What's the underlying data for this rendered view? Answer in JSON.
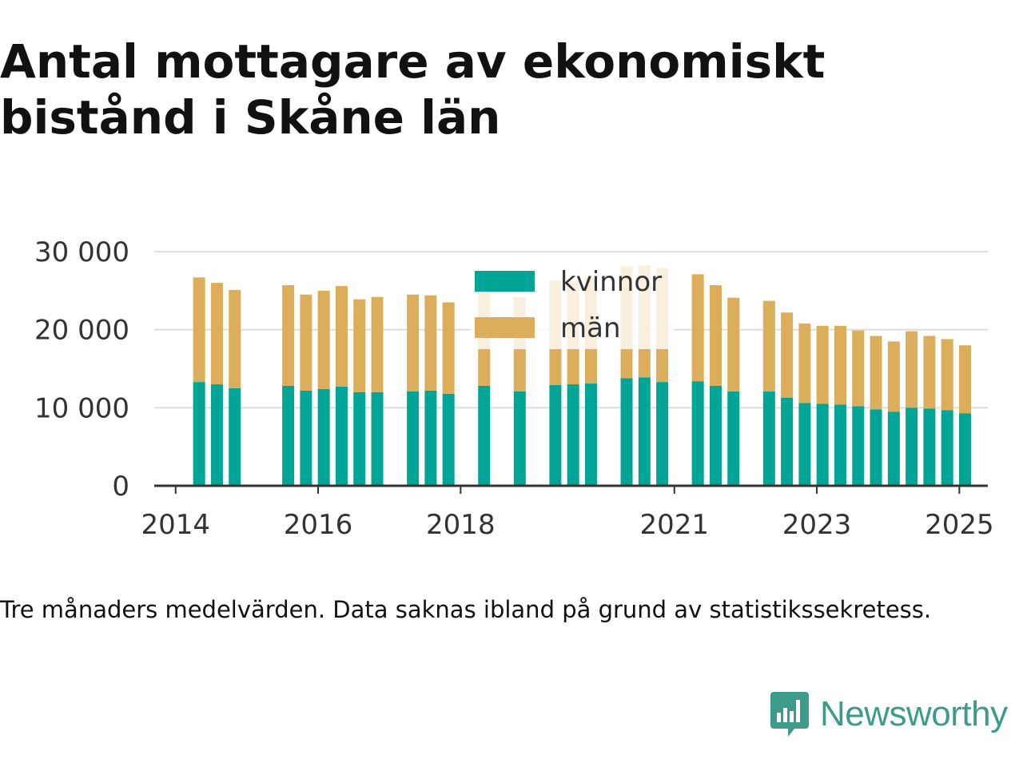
{
  "header": {
    "title": "Antal mottagare av ekonomiskt bistånd i Skåne län"
  },
  "footer": {
    "note": "Tre månaders medelvärden. Data saknas ibland på grund av statistikssekretess.",
    "brand": "Newsworthy"
  },
  "colors": {
    "kvinnor": "#00a595",
    "man": "#dcae5c",
    "brand": "#3d9b89",
    "grid": "#dddddd",
    "axis": "#333333"
  },
  "chart_data": {
    "type": "bar",
    "stacked": true,
    "title": "Antal mottagare av ekonomiskt bistånd i Skåne län",
    "xlabel": "",
    "ylabel": "",
    "ylim": [
      0,
      30000
    ],
    "yticks": [
      0,
      10000,
      20000,
      30000
    ],
    "ytick_labels": [
      "0",
      "10 000",
      "20 000",
      "30 000"
    ],
    "xlim": [
      2013.7,
      2025.4
    ],
    "xticks": [
      2014,
      2016,
      2018,
      2021,
      2023,
      2025
    ],
    "xtick_labels": [
      "2014",
      "2016",
      "2018",
      "2021",
      "2023",
      "2025"
    ],
    "grid": true,
    "legend_position": "top-center",
    "x": [
      2014.33,
      2014.58,
      2014.83,
      2015.58,
      2015.83,
      2016.08,
      2016.33,
      2016.58,
      2016.83,
      2017.33,
      2017.58,
      2017.83,
      2018.33,
      2018.83,
      2019.33,
      2019.58,
      2019.83,
      2020.33,
      2020.58,
      2020.83,
      2021.33,
      2021.58,
      2021.83,
      2022.33,
      2022.58,
      2022.83,
      2023.08,
      2023.33,
      2023.58,
      2023.83,
      2024.08,
      2024.33,
      2024.58,
      2024.83,
      2025.08
    ],
    "series": [
      {
        "name": "kvinnor",
        "values": [
          13300,
          13000,
          12500,
          12800,
          12200,
          12400,
          12700,
          12000,
          12000,
          12100,
          12200,
          11800,
          12800,
          12100,
          12900,
          13000,
          13100,
          13800,
          13900,
          13300,
          13400,
          12800,
          12100,
          12100,
          11300,
          10600,
          10500,
          10400,
          10200,
          9800,
          9500,
          10000,
          9900,
          9700,
          9300
        ]
      },
      {
        "name": "män",
        "values": [
          13400,
          13000,
          12600,
          12900,
          12300,
          12600,
          12900,
          11900,
          12200,
          12400,
          12200,
          11700,
          13000,
          12100,
          13400,
          13200,
          13600,
          14300,
          14300,
          14600,
          13700,
          12900,
          12000,
          11600,
          10900,
          10200,
          10000,
          10100,
          9700,
          9400,
          9000,
          9800,
          9300,
          9100,
          8700
        ]
      }
    ],
    "legend": [
      "kvinnor",
      "män"
    ]
  }
}
